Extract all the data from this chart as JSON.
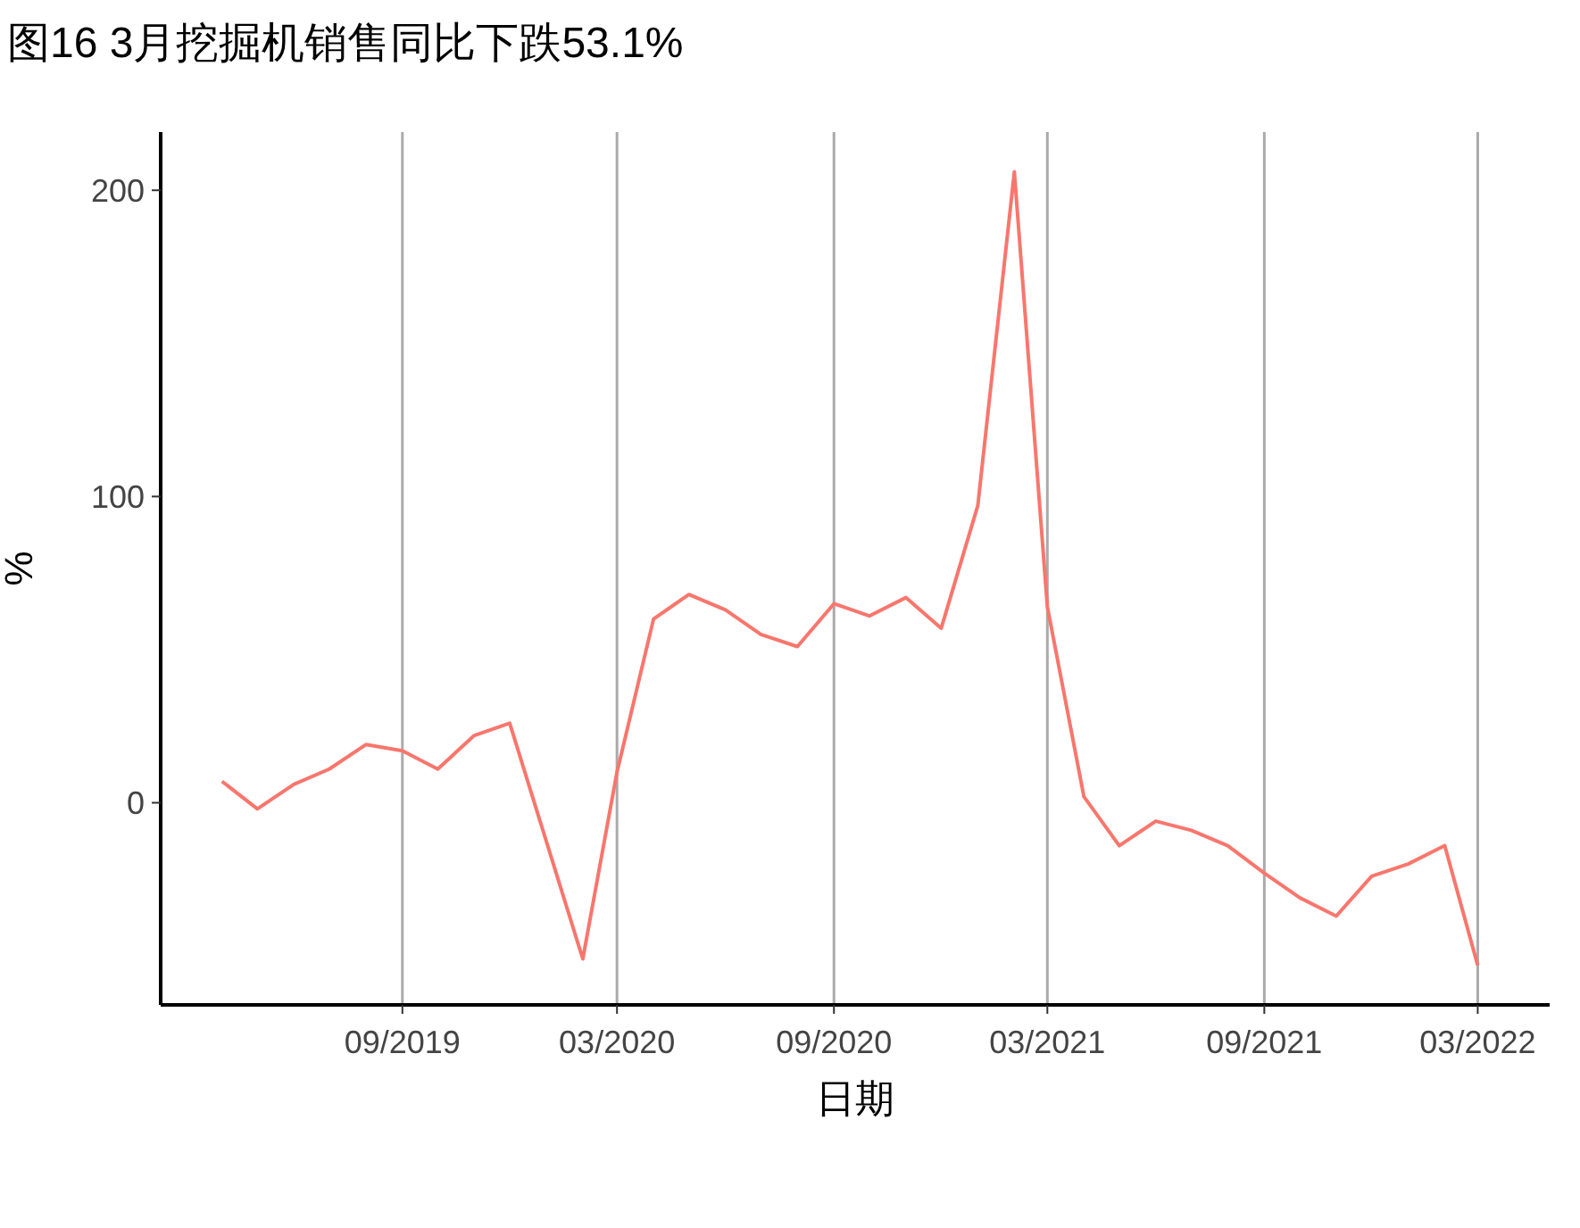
{
  "chart_data": {
    "type": "line",
    "title": "图16 3月挖掘机销售同比下跌53.1%",
    "xlabel": "日期",
    "ylabel": "%",
    "x": [
      "2019-04",
      "2019-05",
      "2019-06",
      "2019-07",
      "2019-08",
      "2019-09",
      "2019-10",
      "2019-11",
      "2019-12",
      "2020-02",
      "2020-03",
      "2020-04",
      "2020-05",
      "2020-06",
      "2020-07",
      "2020-08",
      "2020-09",
      "2020-10",
      "2020-11",
      "2020-12",
      "2021-01",
      "2021-02",
      "2021-03",
      "2021-04",
      "2021-05",
      "2021-06",
      "2021-07",
      "2021-08",
      "2021-09",
      "2021-10",
      "2021-11",
      "2021-12",
      "2022-01",
      "2022-02",
      "2022-03"
    ],
    "series": [
      {
        "color": "#f8766d",
        "values": [
          7,
          -2,
          6,
          11,
          19,
          17,
          11,
          22,
          26,
          -51,
          10,
          60,
          68,
          63,
          55,
          51,
          65,
          61,
          67,
          57,
          97,
          206,
          64,
          2,
          -14,
          -6,
          -9,
          -14,
          -23,
          -31,
          -37,
          -24,
          -20,
          -14,
          -53.1
        ]
      }
    ],
    "xlim": [
      "2019-02-08",
      "2022-05-01"
    ],
    "ylim": [
      -66,
      219
    ],
    "xticks": [
      {
        "value": "2019-09",
        "label": "09/2019"
      },
      {
        "value": "2020-03",
        "label": "03/2020"
      },
      {
        "value": "2020-09",
        "label": "09/2020"
      },
      {
        "value": "2021-03",
        "label": "03/2021"
      },
      {
        "value": "2021-09",
        "label": "09/2021"
      },
      {
        "value": "2022-03",
        "label": "03/2022"
      }
    ],
    "yticks": [
      0,
      100,
      200
    ],
    "grid": "x",
    "line_style": "solid",
    "marker": "none"
  }
}
